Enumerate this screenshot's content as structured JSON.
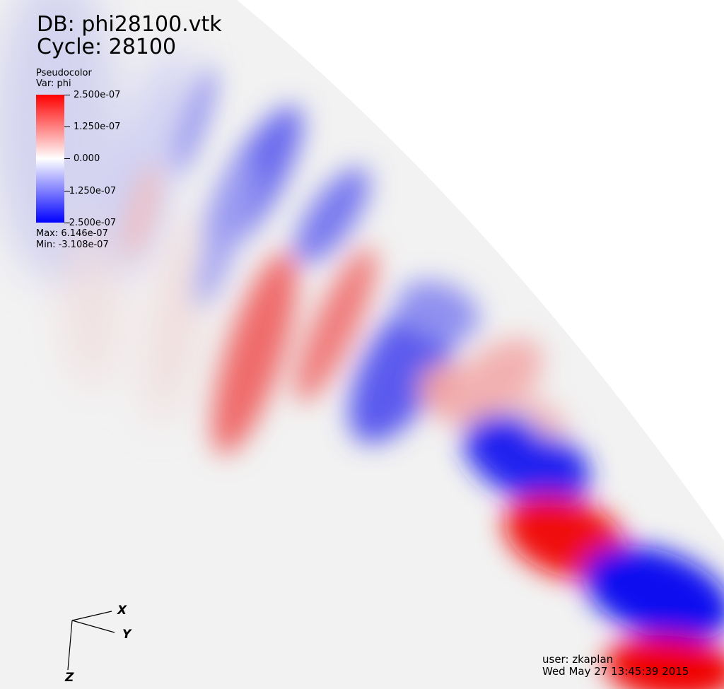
{
  "database": "DB: phi28100.vtk",
  "cycle": "Cycle: 28100",
  "plot_type": "Pseudocolor",
  "variable": "Var: phi",
  "legend": {
    "ticks": [
      "2.500e-07",
      "1.250e-07",
      "0.000",
      "-1.250e-07",
      "-2.500e-07"
    ],
    "max": "Max:  6.146e-07",
    "min": "Min: -3.108e-07",
    "colors": {
      "high": "#ff0000",
      "mid": "#ffffff",
      "low": "#0000ff"
    }
  },
  "axes": {
    "x": "X",
    "y": "Y",
    "z": "Z"
  },
  "user": "user: zkaplan",
  "timestamp": "Wed May 27 13:45:39 2015"
}
